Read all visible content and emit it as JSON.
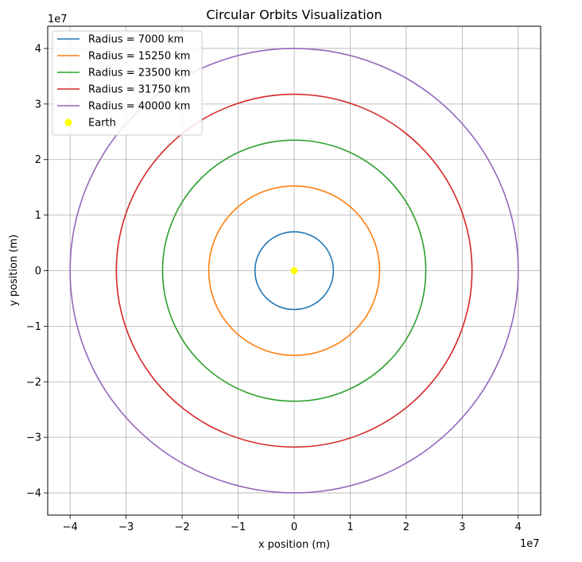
{
  "chart_data": {
    "type": "line",
    "title": "Circular Orbits Visualization",
    "xlabel": "x position (m)",
    "ylabel": "y position (m)",
    "x_offset_label": "1e7",
    "y_offset_label": "1e7",
    "xlim": [
      -4.4,
      4.4
    ],
    "ylim": [
      -4.4,
      4.4
    ],
    "xticks": [
      -4,
      -3,
      -2,
      -1,
      0,
      1,
      2,
      3,
      4
    ],
    "yticks": [
      -4,
      -3,
      -2,
      -1,
      0,
      1,
      2,
      3,
      4
    ],
    "xtick_labels": [
      "−4",
      "−3",
      "−2",
      "−1",
      "0",
      "1",
      "2",
      "3",
      "4"
    ],
    "ytick_labels": [
      "−4",
      "−3",
      "−2",
      "−1",
      "0",
      "1",
      "2",
      "3",
      "4"
    ],
    "grid": true,
    "legend_position": "top-left",
    "series": [
      {
        "name": "Radius = 7000 km",
        "radius": 0.7,
        "color": "#1f77b4"
      },
      {
        "name": "Radius = 15250 km",
        "radius": 1.525,
        "color": "#ff7f0e"
      },
      {
        "name": "Radius = 23500 km",
        "radius": 2.35,
        "color": "#2ca02c"
      },
      {
        "name": "Radius = 31750 km",
        "radius": 3.175,
        "color": "#d62728"
      },
      {
        "name": "Radius = 40000 km",
        "radius": 4.0,
        "color": "#9467bd"
      }
    ],
    "points": [
      {
        "name": "Earth",
        "x": 0,
        "y": 0,
        "color": "#ffff00"
      }
    ]
  }
}
